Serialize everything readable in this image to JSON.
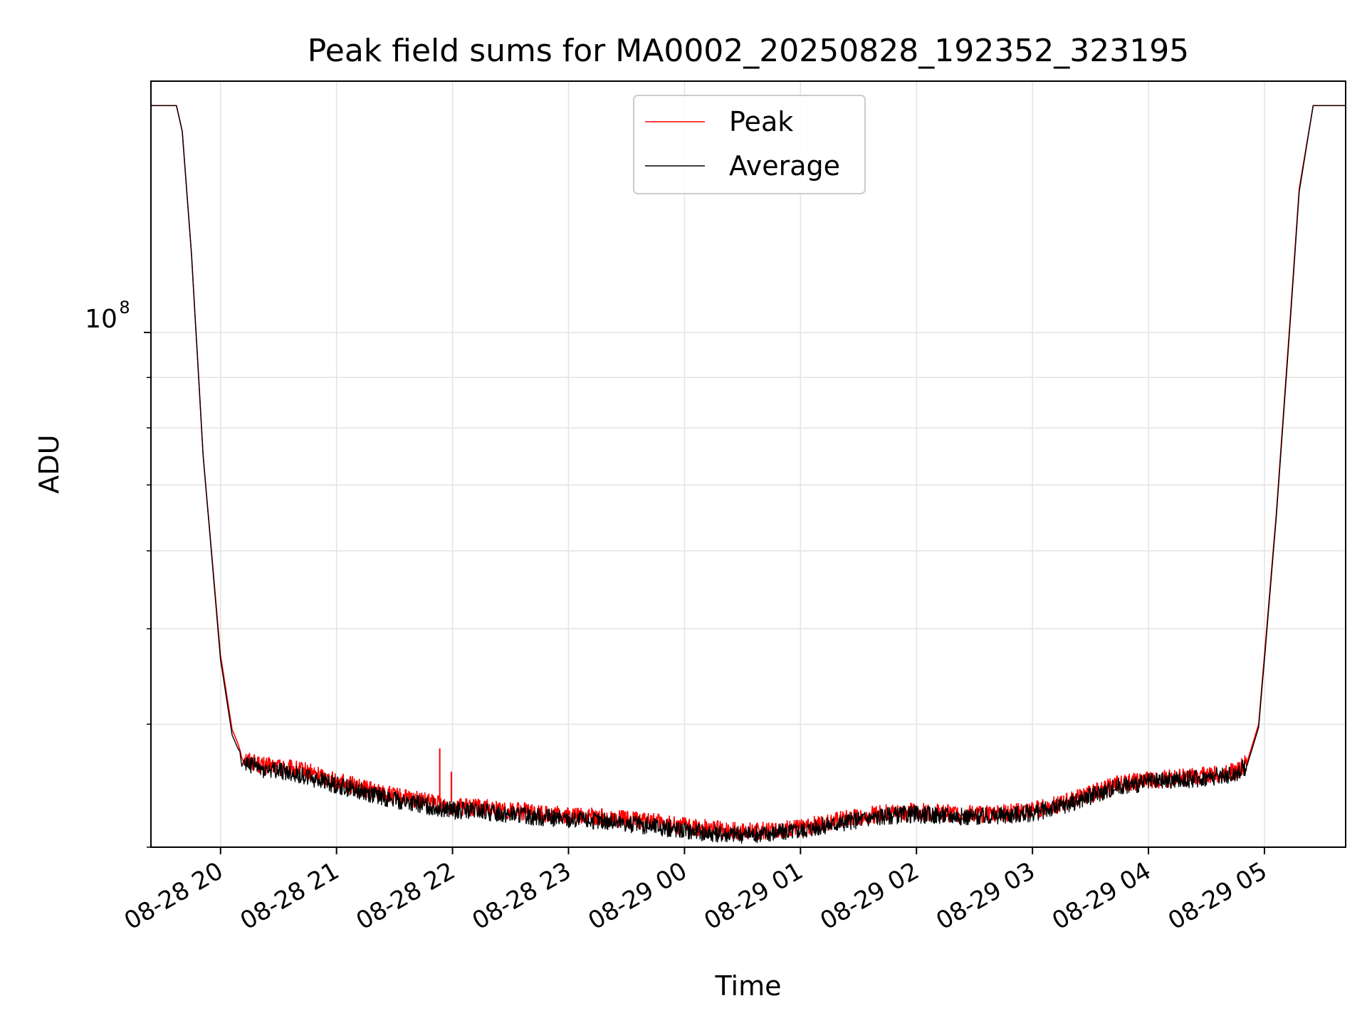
{
  "chart_data": {
    "type": "line",
    "title": "Peak field sums for MA0002_20250828_192352_323195",
    "xlabel": "Time",
    "ylabel": "ADU",
    "yscale": "log",
    "ylim": [
      30000000,
      180000000
    ],
    "xlim_hours": [
      19.4,
      29.7
    ],
    "y_major_tick": {
      "value": 100000000,
      "label_base": "10",
      "label_exp": "8"
    },
    "x_tick_labels": [
      "08-28 20",
      "08-28 21",
      "08-28 22",
      "08-28 23",
      "08-29 00",
      "08-29 01",
      "08-29 02",
      "08-29 03",
      "08-29 04",
      "08-29 05"
    ],
    "x_tick_hours": [
      20,
      21,
      22,
      23,
      24,
      25,
      26,
      27,
      28,
      29
    ],
    "legend": {
      "position": "upper-center",
      "entries": [
        "Peak",
        "Average"
      ]
    },
    "grid": true,
    "series": [
      {
        "name": "Peak",
        "color": "#ff0000",
        "x_hours": [
          19.4,
          19.62,
          19.67,
          19.75,
          19.85,
          20.0,
          20.1,
          20.2,
          20.35,
          20.5,
          20.75,
          21.0,
          21.25,
          21.5,
          21.75,
          22.0,
          22.25,
          22.5,
          22.75,
          23.0,
          23.25,
          23.5,
          23.75,
          24.0,
          24.25,
          24.5,
          24.75,
          25.0,
          25.25,
          25.5,
          25.75,
          26.0,
          26.25,
          26.5,
          26.75,
          27.0,
          27.25,
          27.5,
          27.75,
          28.0,
          28.25,
          28.5,
          28.75,
          28.85,
          28.95,
          29.0,
          29.1,
          29.2,
          29.3,
          29.42,
          29.7
        ],
        "values": [
          170000000,
          170000000,
          160000000,
          120000000,
          75000000,
          47000000,
          39500000,
          37000000,
          36300000,
          36200000,
          35800000,
          35000000,
          34400000,
          33800000,
          33400000,
          33000000,
          32900000,
          32700000,
          32500000,
          32300000,
          32200000,
          32000000,
          31800000,
          31500000,
          31300000,
          31100000,
          31200000,
          31400000,
          31800000,
          32200000,
          32500000,
          32600000,
          32500000,
          32400000,
          32500000,
          32700000,
          33200000,
          34000000,
          34800000,
          35100000,
          35300000,
          35500000,
          35800000,
          36600000,
          40000000,
          47000000,
          65000000,
          95000000,
          140000000,
          170000000,
          170000000
        ]
      },
      {
        "name": "Average",
        "color": "#000000",
        "x_hours": [
          19.4,
          19.62,
          19.67,
          19.75,
          19.85,
          20.0,
          20.1,
          20.2,
          20.35,
          20.5,
          20.75,
          21.0,
          21.25,
          21.5,
          21.75,
          22.0,
          22.25,
          22.5,
          22.75,
          23.0,
          23.25,
          23.5,
          23.75,
          24.0,
          24.25,
          24.5,
          24.75,
          25.0,
          25.25,
          25.5,
          25.75,
          26.0,
          26.25,
          26.5,
          26.75,
          27.0,
          27.25,
          27.5,
          27.75,
          28.0,
          28.25,
          28.5,
          28.75,
          28.85,
          28.95,
          29.0,
          29.1,
          29.2,
          29.3,
          29.42,
          29.7
        ],
        "values": [
          170000000,
          170000000,
          160000000,
          120000000,
          75000000,
          46500000,
          39000000,
          36600000,
          36000000,
          35900000,
          35400000,
          34700000,
          34100000,
          33500000,
          33100000,
          32700000,
          32600000,
          32400000,
          32200000,
          32000000,
          31900000,
          31700000,
          31500000,
          31200000,
          31000000,
          30900000,
          31000000,
          31200000,
          31600000,
          32000000,
          32300000,
          32400000,
          32300000,
          32200000,
          32300000,
          32500000,
          33000000,
          33800000,
          34600000,
          34900000,
          35100000,
          35300000,
          35600000,
          36300000,
          39700000,
          46500000,
          64500000,
          94000000,
          139000000,
          170000000,
          170000000
        ]
      }
    ],
    "annotations": [
      {
        "series": "Peak",
        "x_hour": 21.89,
        "value": 37800000
      },
      {
        "series": "Peak",
        "x_hour": 21.99,
        "value": 35800000
      }
    ]
  }
}
